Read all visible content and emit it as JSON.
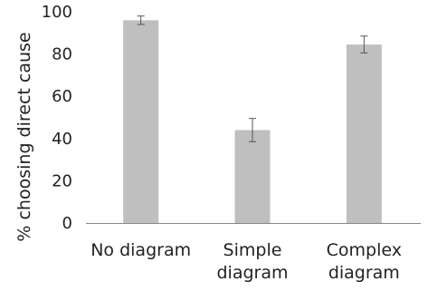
{
  "chart_data": {
    "type": "bar",
    "categories": [
      [
        "No diagram"
      ],
      [
        "Simple",
        "diagram"
      ],
      [
        "Complex",
        "diagram"
      ]
    ],
    "values": [
      96,
      44,
      84.5
    ],
    "errors": [
      2,
      5.5,
      4
    ],
    "ylabel": "% choosing direct cause",
    "xlabel": "",
    "title": "",
    "ylim": [
      0,
      100
    ],
    "yticks": [
      0,
      20,
      40,
      60,
      80,
      100
    ],
    "grid": false,
    "legend": "none",
    "colors": {
      "bar": "#bfbfbf",
      "axis": "#888888",
      "error": "#555555",
      "text": "#222222"
    }
  }
}
